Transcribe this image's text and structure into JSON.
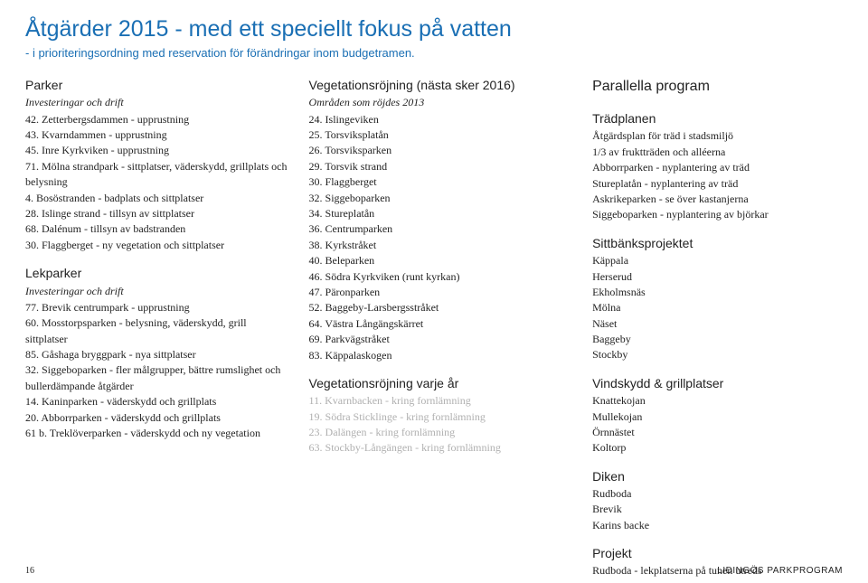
{
  "title": "Åtgärder 2015 - med ett speciellt fokus på vatten",
  "subtitle": "- i prioriteringsordning med reservation för förändringar inom budgetramen.",
  "col1": {
    "parker_head": "Parker",
    "parker_sub": "Investeringar och drift",
    "parker_items": [
      "42. Zetterbergsdammen - upprustning",
      "43. Kvarndammen - upprustning",
      "45. Inre Kyrkviken - upprustning",
      "71. Mölna strandpark - sittplatser, väderskydd, grillplats och belysning",
      "4. Bosöstranden - badplats och sittplatser",
      "28. Islinge strand - tillsyn av sittplatser",
      "68. Dalénum - tillsyn av badstranden",
      "30. Flaggberget - ny vegetation och sittplatser"
    ],
    "lekparker_head": "Lekparker",
    "lekparker_sub": "Investeringar och drift",
    "lekparker_items": [
      "77. Brevik centrumpark - upprustning",
      "60. Mosstorpsparken - belysning, väderskydd, grill sittplatser",
      "85. Gåshaga bryggpark - nya sittplatser",
      "32. Siggeboparken - fler målgrupper, bättre rumslighet  och bullerdämpande åtgärder",
      "14. Kaninparken - väderskydd och grillplats",
      "20. Abborrparken - väderskydd och grillplats",
      "61 b. Treklöverparken - väderskydd och ny vegetation"
    ]
  },
  "col2": {
    "veg_head": "Vegetationsröjning (nästa sker 2016)",
    "veg_sub": "Områden som röjdes 2013",
    "veg_items": [
      "24. Islingeviken",
      "25. Torsviksplatån",
      "26. Torsviksparken",
      "29. Torsvik strand",
      "30. Flaggberget",
      "32. Siggeboparken",
      "34. Stureplatån",
      "36. Centrumparken",
      "38. Kyrkstråket",
      "40. Beleparken",
      "46. Södra Kyrkviken (runt kyrkan)",
      "47. Päronparken",
      "52. Baggeby-Larsbergsstråket",
      "64. Västra Långängskärret",
      "69. Parkvägstråket",
      "83. Käppalaskogen"
    ],
    "year_head": "Vegetationsröjning varje år",
    "year_items": [
      "11. Kvarnbacken - kring fornlämning",
      "19. Södra Sticklinge - kring fornlämning",
      "23. Dalängen - kring fornlämning",
      "63. Stockby-Långängen - kring fornlämning"
    ]
  },
  "col3": {
    "head": "Parallella program",
    "trad_head": "Trädplanen",
    "trad_items": [
      "Åtgärdsplan för träd i stadsmiljö",
      "1/3 av fruktträden och alléerna",
      "Abborrparken - nyplantering av träd",
      "Stureplatån - nyplantering av träd",
      "Askrikeparken - se över kastanjerna",
      "Siggeboparken - nyplantering av björkar"
    ],
    "sitt_head": "Sittbänksprojektet",
    "sitt_items": [
      "Käppala",
      "Herserud",
      "Ekholmsnäs",
      "Mölna",
      "Näset",
      "Baggeby",
      "Stockby"
    ],
    "vind_head": "Vindskydd & grillplatser",
    "vind_items": [
      "Knattekojan",
      "Mullekojan",
      "Örnnästet",
      "Koltorp"
    ],
    "diken_head": "Diken",
    "diken_items": [
      "Rudboda",
      "Brevik",
      "Karins backe"
    ],
    "proj_head": "Projekt",
    "proj_items": [
      "Rudboda - lekplatserna på tunen utreds"
    ]
  },
  "footer": {
    "page": "16",
    "doc": "LIDINGÖS PARKPROGRAM"
  }
}
